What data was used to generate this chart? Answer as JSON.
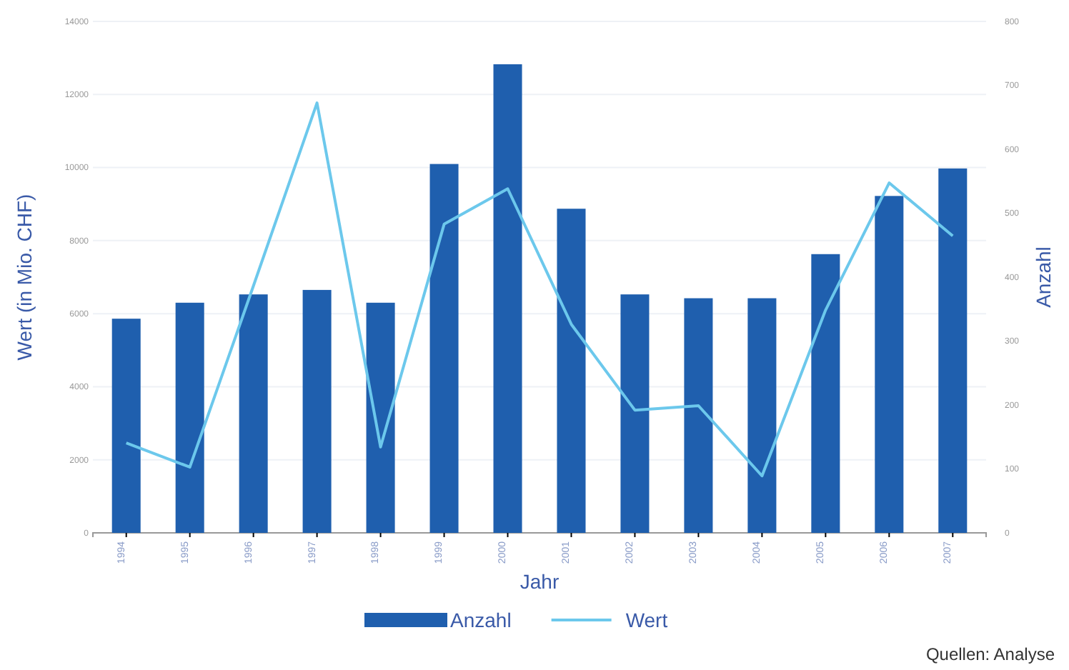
{
  "chart_data": {
    "type": "bar",
    "categories": [
      "1994",
      "1995",
      "1996",
      "1997",
      "1998",
      "1999",
      "2000",
      "2001",
      "2002",
      "2003",
      "2004",
      "2005",
      "2006",
      "2007"
    ],
    "series": [
      {
        "name": "Anzahl",
        "axis": "y2",
        "color": "#1f5fae",
        "values": [
          335,
          360,
          373,
          380,
          360,
          577,
          733,
          507,
          373,
          367,
          367,
          436,
          527,
          570
        ]
      },
      {
        "name": "Wert",
        "type": "line",
        "color": "#6cc8ec",
        "values": [
          2460,
          1800,
          6760,
          11770,
          2350,
          8450,
          9420,
          5710,
          3360,
          3480,
          1560,
          6100,
          9580,
          8130
        ]
      }
    ],
    "xlabel": "Jahr",
    "ylabel": "Wert (in Mio. CHF)",
    "y2label": "Anzahl",
    "ylim": [
      0,
      14000
    ],
    "yticks": [
      0,
      2000,
      4000,
      6000,
      8000,
      10000,
      12000,
      14000
    ],
    "y2lim": [
      0,
      800
    ],
    "y2ticks": [
      0,
      100,
      200,
      300,
      400,
      500,
      600,
      700,
      800
    ],
    "grid": "y",
    "legend": "bottom",
    "marker": "none",
    "annotations": [
      "Quellen: Analyse"
    ]
  }
}
